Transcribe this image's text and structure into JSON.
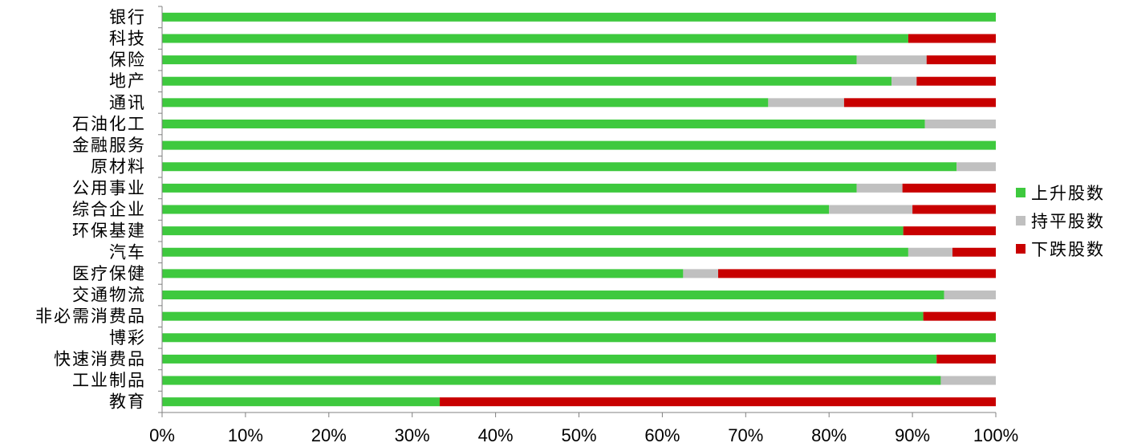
{
  "chart_data": {
    "type": "bar",
    "orientation": "horizontal",
    "stacked": true,
    "percent_stacked": true,
    "categories": [
      "银行",
      "科技",
      "保险",
      "地产",
      "通讯",
      "石油化工",
      "金融服务",
      "原材料",
      "公用事业",
      "综合企业",
      "环保基建",
      "汽车",
      "医疗保健",
      "交通物流",
      "非必需消费品",
      "博彩",
      "快速消费品",
      "工业制品",
      "教育"
    ],
    "series": [
      {
        "name": "上升股数",
        "color": "#3ec93e",
        "values": [
          100,
          89.5,
          83.3,
          87.5,
          72.7,
          91.5,
          100,
          95.3,
          83.3,
          80.0,
          88.9,
          89.5,
          62.5,
          93.8,
          91.3,
          100,
          92.9,
          93.4,
          33.3
        ]
      },
      {
        "name": "持平股数",
        "color": "#c0c0c0",
        "values": [
          0,
          0,
          8.4,
          3.0,
          9.1,
          8.5,
          0,
          4.7,
          5.5,
          10.0,
          0,
          5.3,
          4.2,
          6.2,
          0,
          0,
          0,
          6.6,
          0
        ]
      },
      {
        "name": "下跌股数",
        "color": "#c80000",
        "values": [
          0,
          10.5,
          8.3,
          9.5,
          18.2,
          0,
          0,
          0,
          11.2,
          10.0,
          11.1,
          5.2,
          33.3,
          0,
          8.7,
          0,
          7.1,
          0,
          66.7
        ]
      }
    ],
    "xlim": [
      0,
      100
    ],
    "x_ticks": [
      "0%",
      "10%",
      "20%",
      "30%",
      "40%",
      "50%",
      "60%",
      "70%",
      "80%",
      "90%",
      "100%"
    ],
    "legend_position": "right",
    "grid": false,
    "title": "",
    "xlabel": "",
    "ylabel": ""
  }
}
